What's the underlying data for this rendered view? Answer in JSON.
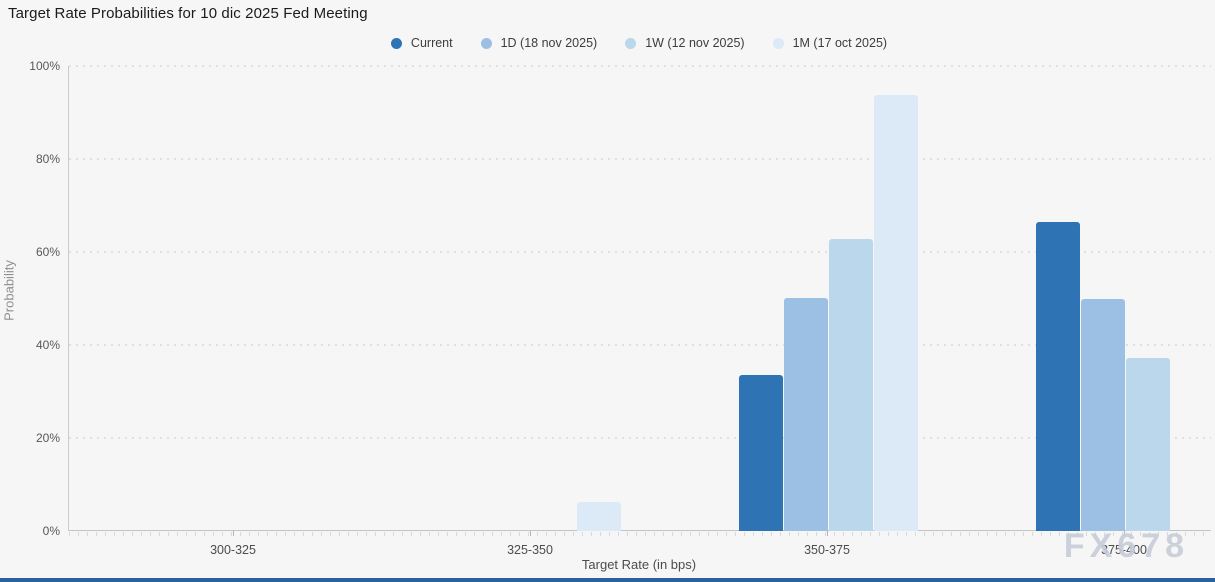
{
  "title": "Target Rate Probabilities for 10 dic 2025 Fed Meeting",
  "watermark": "FX678",
  "colors": {
    "background": "#f6f6f7",
    "grid_dot": "#dfe0e1",
    "axis_line": "#c2c3c5",
    "series_current": "#2e74b5",
    "series_1d": "#9cc0e4",
    "series_1w": "#bad7ec",
    "series_1m": "#dce9f6"
  },
  "chart_data": {
    "type": "bar",
    "title": "Target Rate Probabilities for 10 dic 2025 Fed Meeting",
    "xlabel": "Target Rate (in bps)",
    "ylabel": "Probability",
    "ylim": [
      0,
      100
    ],
    "grid": "horizontal-dotted",
    "legend_position": "top-center",
    "y_ticks": [
      {
        "label": "0%",
        "value": 0
      },
      {
        "label": "20%",
        "value": 20
      },
      {
        "label": "40%",
        "value": 40
      },
      {
        "label": "60%",
        "value": 60
      },
      {
        "label": "80%",
        "value": 80
      },
      {
        "label": "100%",
        "value": 100
      }
    ],
    "categories": [
      "300-325",
      "325-350",
      "350-375",
      "375-400"
    ],
    "series": [
      {
        "name": "Current",
        "color": "#2e74b5",
        "values": [
          0,
          0,
          33.5,
          66.5
        ]
      },
      {
        "name": "1D (18 nov 2025)",
        "color": "#9cc0e4",
        "values": [
          0,
          0,
          50.2,
          49.8
        ]
      },
      {
        "name": "1W (12 nov 2025)",
        "color": "#bad7ec",
        "values": [
          0,
          0,
          62.8,
          37.2
        ]
      },
      {
        "name": "1M (17 oct 2025)",
        "color": "#dce9f6",
        "values": [
          0,
          6.3,
          93.7,
          0
        ]
      }
    ]
  }
}
